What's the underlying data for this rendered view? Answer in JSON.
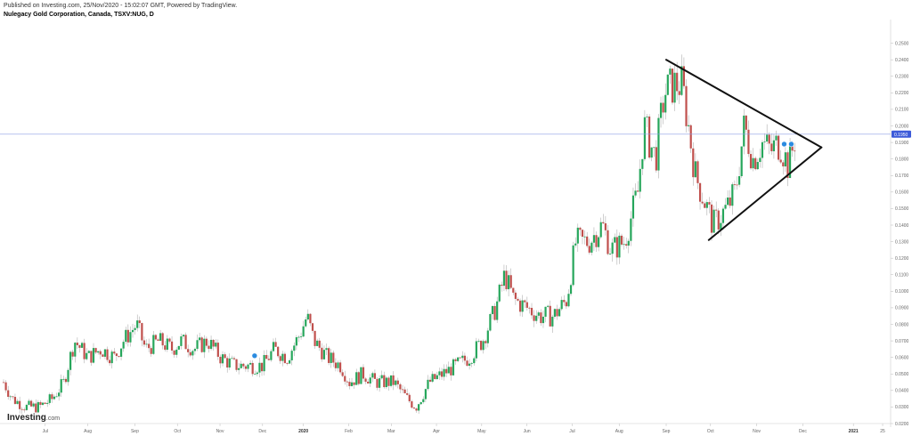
{
  "header": {
    "published": "Published on Investing.com, 25/Nov/2020 - 15:02:07 GMT, Powered by TradingView.",
    "title": "Nulegacy Gold Corporation, Canada, TSXV:NUG, D"
  },
  "logo": {
    "main": "Investing",
    "suffix": ".com"
  },
  "colors": {
    "up": "#26a65b",
    "down": "#c0504d",
    "price_line": "#8c9fe6",
    "price_badge": "#3d5bd9",
    "trendline": "#111111",
    "dividend_marker": "#2b8be0"
  },
  "chart_data": {
    "type": "candlestick",
    "title": "",
    "xlabel": "",
    "ylabel": "",
    "ylim": [
      0.02,
      0.26
    ],
    "current_price": {
      "label": "0.1950",
      "value": 0.195
    },
    "y_ticks": [
      "0.2500",
      "0.2400",
      "0.2300",
      "0.2200",
      "0.2100",
      "0.2000",
      "0.1900",
      "0.1800",
      "0.1700",
      "0.1600",
      "0.1500",
      "0.1400",
      "0.1300",
      "0.1200",
      "0.1100",
      "0.1000",
      "0.0900",
      "0.0800",
      "0.0700",
      "0.0600",
      "0.0500",
      "0.0400",
      "0.0300",
      "0.0200"
    ],
    "x_ticks": [
      {
        "label": "Jul",
        "pos": 0.047,
        "bold": false
      },
      {
        "label": "Aug",
        "pos": 0.095,
        "bold": false
      },
      {
        "label": "Sep",
        "pos": 0.148,
        "bold": false
      },
      {
        "label": "Oct",
        "pos": 0.196,
        "bold": false
      },
      {
        "label": "Nov",
        "pos": 0.244,
        "bold": false
      },
      {
        "label": "Dec",
        "pos": 0.292,
        "bold": false
      },
      {
        "label": "2020",
        "pos": 0.338,
        "bold": true
      },
      {
        "label": "Feb",
        "pos": 0.389,
        "bold": false
      },
      {
        "label": "Mar",
        "pos": 0.437,
        "bold": false
      },
      {
        "label": "Apr",
        "pos": 0.488,
        "bold": false
      },
      {
        "label": "May",
        "pos": 0.539,
        "bold": false
      },
      {
        "label": "Jun",
        "pos": 0.59,
        "bold": false
      },
      {
        "label": "Jul",
        "pos": 0.641,
        "bold": false
      },
      {
        "label": "Aug",
        "pos": 0.694,
        "bold": false
      },
      {
        "label": "Sep",
        "pos": 0.747,
        "bold": false
      },
      {
        "label": "Oct",
        "pos": 0.797,
        "bold": false
      },
      {
        "label": "Nov",
        "pos": 0.849,
        "bold": false
      },
      {
        "label": "Dec",
        "pos": 0.901,
        "bold": false
      },
      {
        "label": "2021",
        "pos": 0.958,
        "bold": true
      },
      {
        "label": "25",
        "pos": 0.991,
        "bold": false
      }
    ],
    "close_series": [
      {
        "t": 0.0,
        "c": 0.045
      },
      {
        "t": 0.01,
        "c": 0.035
      },
      {
        "t": 0.025,
        "c": 0.03
      },
      {
        "t": 0.04,
        "c": 0.03
      },
      {
        "t": 0.055,
        "c": 0.035
      },
      {
        "t": 0.068,
        "c": 0.045
      },
      {
        "t": 0.075,
        "c": 0.06
      },
      {
        "t": 0.08,
        "c": 0.07
      },
      {
        "t": 0.095,
        "c": 0.06
      },
      {
        "t": 0.11,
        "c": 0.065
      },
      {
        "t": 0.125,
        "c": 0.06
      },
      {
        "t": 0.135,
        "c": 0.07
      },
      {
        "t": 0.15,
        "c": 0.08
      },
      {
        "t": 0.16,
        "c": 0.065
      },
      {
        "t": 0.175,
        "c": 0.07
      },
      {
        "t": 0.19,
        "c": 0.065
      },
      {
        "t": 0.2,
        "c": 0.07
      },
      {
        "t": 0.215,
        "c": 0.065
      },
      {
        "t": 0.23,
        "c": 0.07
      },
      {
        "t": 0.245,
        "c": 0.06
      },
      {
        "t": 0.26,
        "c": 0.055
      },
      {
        "t": 0.28,
        "c": 0.055
      },
      {
        "t": 0.292,
        "c": 0.055
      },
      {
        "t": 0.305,
        "c": 0.065
      },
      {
        "t": 0.32,
        "c": 0.06
      },
      {
        "t": 0.335,
        "c": 0.075
      },
      {
        "t": 0.342,
        "c": 0.085
      },
      {
        "t": 0.35,
        "c": 0.07
      },
      {
        "t": 0.365,
        "c": 0.06
      },
      {
        "t": 0.38,
        "c": 0.055
      },
      {
        "t": 0.39,
        "c": 0.045
      },
      {
        "t": 0.405,
        "c": 0.05
      },
      {
        "t": 0.42,
        "c": 0.045
      },
      {
        "t": 0.44,
        "c": 0.045
      },
      {
        "t": 0.455,
        "c": 0.035
      },
      {
        "t": 0.465,
        "c": 0.03
      },
      {
        "t": 0.48,
        "c": 0.045
      },
      {
        "t": 0.495,
        "c": 0.05
      },
      {
        "t": 0.51,
        "c": 0.055
      },
      {
        "t": 0.525,
        "c": 0.06
      },
      {
        "t": 0.54,
        "c": 0.07
      },
      {
        "t": 0.555,
        "c": 0.09
      },
      {
        "t": 0.565,
        "c": 0.11
      },
      {
        "t": 0.575,
        "c": 0.095
      },
      {
        "t": 0.59,
        "c": 0.09
      },
      {
        "t": 0.605,
        "c": 0.085
      },
      {
        "t": 0.62,
        "c": 0.085
      },
      {
        "t": 0.635,
        "c": 0.095
      },
      {
        "t": 0.645,
        "c": 0.13
      },
      {
        "t": 0.66,
        "c": 0.13
      },
      {
        "t": 0.675,
        "c": 0.14
      },
      {
        "t": 0.685,
        "c": 0.125
      },
      {
        "t": 0.7,
        "c": 0.13
      },
      {
        "t": 0.715,
        "c": 0.16
      },
      {
        "t": 0.722,
        "c": 0.2
      },
      {
        "t": 0.735,
        "c": 0.18
      },
      {
        "t": 0.745,
        "c": 0.22
      },
      {
        "t": 0.755,
        "c": 0.225
      },
      {
        "t": 0.765,
        "c": 0.225
      },
      {
        "t": 0.772,
        "c": 0.2
      },
      {
        "t": 0.78,
        "c": 0.17
      },
      {
        "t": 0.79,
        "c": 0.155
      },
      {
        "t": 0.8,
        "c": 0.14
      },
      {
        "t": 0.815,
        "c": 0.15
      },
      {
        "t": 0.825,
        "c": 0.16
      },
      {
        "t": 0.835,
        "c": 0.2
      },
      {
        "t": 0.845,
        "c": 0.18
      },
      {
        "t": 0.855,
        "c": 0.19
      },
      {
        "t": 0.865,
        "c": 0.185
      },
      {
        "t": 0.875,
        "c": 0.19
      },
      {
        "t": 0.885,
        "c": 0.175
      },
      {
        "t": 0.893,
        "c": 0.195
      }
    ],
    "trendlines": [
      {
        "from": {
          "t": 0.747,
          "v": 0.24
        },
        "to": {
          "t": 0.922,
          "v": 0.187
        }
      },
      {
        "from": {
          "t": 0.795,
          "v": 0.131
        },
        "to": {
          "t": 0.922,
          "v": 0.187
        }
      }
    ],
    "markers": [
      {
        "t": 0.283,
        "v": 0.061
      },
      {
        "t": 0.88,
        "v": 0.189
      },
      {
        "t": 0.888,
        "v": 0.189
      }
    ]
  }
}
